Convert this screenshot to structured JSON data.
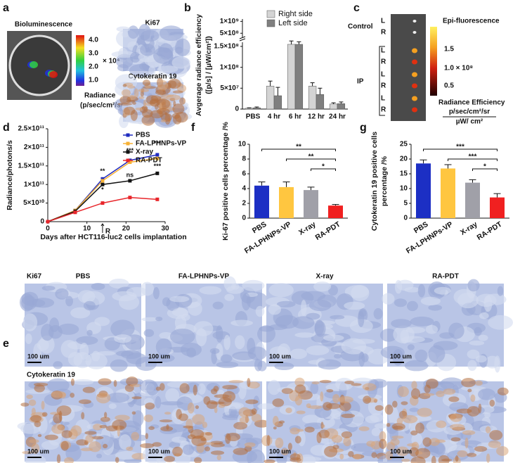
{
  "figure": {
    "panel_labels": [
      "a",
      "b",
      "c",
      "d",
      "e",
      "f",
      "g"
    ],
    "a": {
      "title": "Bioluminescence",
      "colorbar_ticks": [
        "4.0",
        "3.0",
        "2.0",
        "1.0"
      ],
      "colorbar_unit": "× 10⁴",
      "colorbar_label": [
        "Radiance",
        "(p/sec/cm²/sr)"
      ],
      "stain_labels": [
        "Ki67",
        "Cytokeratin 19"
      ]
    },
    "c": {
      "groups": [
        {
          "name": "Control",
          "rows": [
            "L",
            "R"
          ]
        },
        {
          "name": "IP",
          "rows": [
            "L",
            "R",
            "L",
            "R",
            "L",
            "R"
          ]
        }
      ],
      "title": "Epi-fluorescence",
      "colorbar_ticks": [
        "1.5",
        "1.0 × 10⁸",
        "0.5"
      ],
      "colorbar_label": [
        "Radiance Efficiency",
        "p/sec/cm²/sr",
        "µW/ cm²"
      ]
    },
    "e": {
      "rows": [
        "Ki67",
        "Cytokeratin 19"
      ],
      "columns": [
        "PBS",
        "FA-LPHNPs-VP",
        "X-ray",
        "RA-PDT"
      ],
      "scale_bar": "100 um"
    }
  },
  "chart_data": [
    {
      "type": "bar",
      "categories": [
        "PBS",
        "4 hr",
        "6 hr",
        "12 hr",
        "24 hr"
      ],
      "ylabel": [
        "Avgerage radiance efficiency",
        "([p/s] / [µW/cm²])"
      ],
      "series": [
        {
          "name": "Right side",
          "color": "#d4d4d4",
          "values": [
            2000000,
            55000000,
            155000000,
            55000000,
            12000000
          ],
          "errors": [
            1000000,
            12000000,
            8000000,
            8000000,
            3000000
          ]
        },
        {
          "name": "Left side",
          "color": "#7f7f7f",
          "values": [
            3000000,
            32000000,
            155000000,
            35000000,
            13000000
          ],
          "errors": [
            2000000,
            20000000,
            6000000,
            15000000,
            4000000
          ]
        }
      ],
      "ylim": [
        0,
        160000000
      ],
      "yticks": [
        0,
        {
          "value": 50000000,
          "label": "5×10⁷"
        },
        {
          "value": 100000000,
          "label": "1×10⁸"
        },
        {
          "value": 150000000,
          "label": "1.5×10⁸"
        }
      ],
      "y_break_lim": [
        300000000,
        1100000000
      ],
      "y_break_ticks": [
        {
          "value": 500000000,
          "label": "5×10⁸"
        },
        {
          "value": 1000000000,
          "label": "1×10⁹"
        }
      ],
      "legend": "upper right"
    },
    {
      "type": "line",
      "x": [
        0,
        7,
        14,
        21,
        28
      ],
      "xlim": [
        0,
        30
      ],
      "xticks": [
        0,
        10,
        20,
        30
      ],
      "ylim": [
        0,
        250000000000
      ],
      "yticks": [
        0,
        {
          "value": 50000000000,
          "label": "5×10¹⁰"
        },
        {
          "value": 100000000000,
          "label": "1×10¹¹"
        },
        {
          "value": 150000000000,
          "label": "1.5×10¹¹"
        },
        {
          "value": 200000000000,
          "label": "2×10¹¹"
        },
        {
          "value": 250000000000,
          "label": "2.5×10¹¹"
        }
      ],
      "xlabel": "Days after HCT116-luc2 cells implantation",
      "ylabel": "Radiance/photons/s",
      "series": [
        {
          "name": "PBS",
          "color": "#1f2bbf",
          "values": [
            0,
            30000000000,
            115000000000,
            165000000000,
            180000000000
          ]
        },
        {
          "name": "FA-LPHNPs-VP",
          "color": "#f7b134",
          "values": [
            0,
            30000000000,
            110000000000,
            160000000000,
            170000000000
          ]
        },
        {
          "name": "X-ray",
          "color": "#111111",
          "values": [
            0,
            28000000000,
            100000000000,
            110000000000,
            130000000000
          ]
        },
        {
          "name": "RA-PDT",
          "color": "#e8262b",
          "values": [
            0,
            25000000000,
            50000000000,
            65000000000,
            60000000000
          ]
        }
      ],
      "annotations": [
        {
          "text": "**",
          "x": 14,
          "y": 135000000000
        },
        {
          "text": "*",
          "x": 14,
          "y": 85000000000
        },
        {
          "text": "***",
          "x": 21,
          "y": 190000000000
        },
        {
          "text": "ns",
          "x": 21,
          "y": 125000000000
        },
        {
          "text": "***",
          "x": 28,
          "y": 210000000000
        },
        {
          "text": "***",
          "x": 28,
          "y": 148000000000
        }
      ],
      "marker_label": {
        "text": "R",
        "x": 14
      },
      "legend": "upper right"
    },
    {
      "type": "bar",
      "categories": [
        "PBS",
        "FA-LPHNPs-VP",
        "X-ray",
        "RA-PDT"
      ],
      "values": [
        4.4,
        4.2,
        3.8,
        1.7
      ],
      "errors": [
        0.5,
        0.7,
        0.4,
        0.15
      ],
      "colors": [
        "#1c2fc4",
        "#ffc640",
        "#a0a0a8",
        "#f02020"
      ],
      "ylim": [
        0,
        10
      ],
      "yticks": [
        0,
        2,
        4,
        6,
        8,
        10
      ],
      "ylabel": [
        "Ki-67 positive cells percentage /%"
      ],
      "annotations": [
        {
          "text": "**",
          "from": 0,
          "to": 3
        },
        {
          "text": "**",
          "from": 1,
          "to": 3
        },
        {
          "text": "*",
          "from": 2,
          "to": 3
        }
      ]
    },
    {
      "type": "bar",
      "categories": [
        "PBS",
        "FA-LPHNPs-VP",
        "X-ray",
        "RA-PDT"
      ],
      "values": [
        18.5,
        16.8,
        12,
        7
      ],
      "errors": [
        1.2,
        1.3,
        1,
        1.3
      ],
      "colors": [
        "#1c2fc4",
        "#ffc640",
        "#a0a0a8",
        "#f02020"
      ],
      "ylim": [
        0,
        25
      ],
      "yticks": [
        0,
        5,
        10,
        15,
        20,
        25
      ],
      "ylabel": [
        "Cytokeratin 19 positive cells",
        "percentage /%"
      ],
      "annotations": [
        {
          "text": "***",
          "from": 0,
          "to": 3
        },
        {
          "text": "***",
          "from": 1,
          "to": 3
        },
        {
          "text": "*",
          "from": 2,
          "to": 3
        }
      ]
    }
  ]
}
